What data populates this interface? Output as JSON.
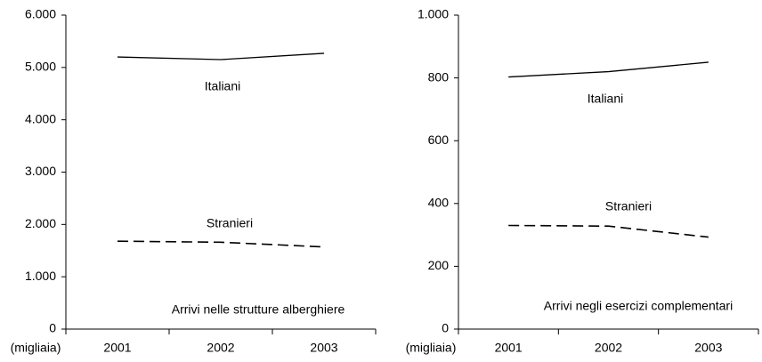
{
  "chart_data": [
    {
      "type": "line",
      "categories": [
        "2001",
        "2002",
        "2003"
      ],
      "series": [
        {
          "name": "Italiani",
          "color": "#000000",
          "line_style": "solid",
          "values": [
            5200,
            5150,
            5270
          ]
        },
        {
          "name": "Stranieri",
          "color": "#000000",
          "line_style": "dashed",
          "values": [
            1680,
            1660,
            1570
          ]
        }
      ],
      "ylim": [
        0,
        6000
      ],
      "yticks": [
        0,
        {
          "value": 1000,
          "label": "1.000"
        },
        {
          "value": 2000,
          "label": "2.000"
        },
        {
          "value": 3000,
          "label": "3.000"
        },
        {
          "value": 4000,
          "label": "4.000"
        },
        {
          "value": 5000,
          "label": "5.000"
        },
        {
          "value": 6000,
          "label": "6.000"
        }
      ],
      "unit_label": "(migliaia)",
      "annotation": "Arrivi nelle strutture alberghiere",
      "grid": false
    },
    {
      "type": "line",
      "categories": [
        "2001",
        "2002",
        "2003"
      ],
      "series": [
        {
          "name": "Italiani",
          "color": "#000000",
          "line_style": "solid",
          "values": [
            803,
            820,
            850
          ]
        },
        {
          "name": "Stranieri",
          "color": "#000000",
          "line_style": "dashed",
          "values": [
            330,
            328,
            293
          ]
        }
      ],
      "ylim": [
        0,
        1000
      ],
      "yticks": [
        0,
        200,
        400,
        600,
        800,
        {
          "value": 1000,
          "label": "1.000"
        }
      ],
      "unit_label": "(migliaia)",
      "annotation": "Arrivi negli esercizi complementari",
      "grid": false
    }
  ]
}
